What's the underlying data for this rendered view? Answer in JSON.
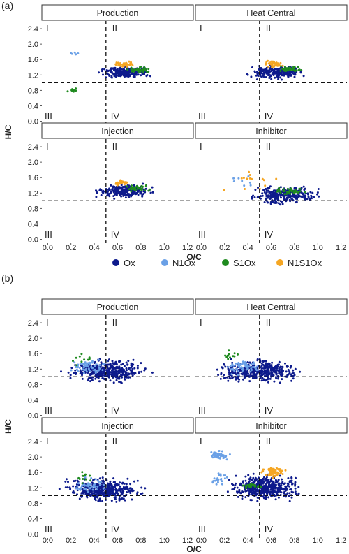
{
  "figure": {
    "panel_labels": [
      "(a)",
      "(b)"
    ],
    "facet_titles": [
      "Production",
      "Heat Central",
      "Injection",
      "Inhibitor"
    ],
    "quadrant_labels": [
      "I",
      "II",
      "III",
      "IV"
    ],
    "xlabel": "O/C",
    "ylabel": "H/C",
    "x_ticks": [
      "0.0",
      "0.2",
      "0.4",
      "0.6",
      "0.8",
      "1.0",
      "1.2"
    ],
    "y_ticks": [
      "0.0",
      "0.4",
      "0.8",
      "1.2",
      "1.6",
      "2.0",
      "2.4"
    ],
    "legend": [
      {
        "name": "Ox",
        "color": "#0d1a8c"
      },
      {
        "name": "N1Ox",
        "color": "#6aa0e6"
      },
      {
        "name": "S1Ox",
        "color": "#1f8a1f"
      },
      {
        "name": "N1S1Ox",
        "color": "#f5a623"
      }
    ]
  },
  "chart_data": [
    {
      "type": "scatter",
      "panel": "(a)",
      "xlim": [
        -0.05,
        1.25
      ],
      "ylim": [
        -0.1,
        2.6
      ],
      "reference_lines": {
        "x": 0.5,
        "y": 1.0
      },
      "facets": [
        {
          "title": "Production",
          "clusters": [
            {
              "series": "Ox",
              "center": [
                0.65,
                1.28
              ],
              "spread": [
                0.18,
                0.12
              ],
              "n": 240
            },
            {
              "series": "S1Ox",
              "center": [
                0.78,
                1.33
              ],
              "spread": [
                0.08,
                0.06
              ],
              "n": 45
            },
            {
              "series": "S1Ox",
              "center": [
                0.22,
                0.82
              ],
              "spread": [
                0.05,
                0.05
              ],
              "n": 8
            },
            {
              "series": "N1S1Ox",
              "center": [
                0.66,
                1.47
              ],
              "spread": [
                0.06,
                0.06
              ],
              "n": 35
            },
            {
              "series": "N1Ox",
              "center": [
                0.22,
                1.76
              ],
              "spread": [
                0.05,
                0.03
              ],
              "n": 6
            }
          ]
        },
        {
          "title": "Heat Central",
          "clusters": [
            {
              "series": "Ox",
              "center": [
                0.65,
                1.27
              ],
              "spread": [
                0.19,
                0.13
              ],
              "n": 240
            },
            {
              "series": "S1Ox",
              "center": [
                0.76,
                1.35
              ],
              "spread": [
                0.08,
                0.06
              ],
              "n": 45
            },
            {
              "series": "N1S1Ox",
              "center": [
                0.62,
                1.48
              ],
              "spread": [
                0.06,
                0.07
              ],
              "n": 45
            }
          ]
        },
        {
          "title": "Injection",
          "clusters": [
            {
              "series": "Ox",
              "center": [
                0.65,
                1.25
              ],
              "spread": [
                0.18,
                0.14
              ],
              "n": 240
            },
            {
              "series": "S1Ox",
              "center": [
                0.78,
                1.32
              ],
              "spread": [
                0.08,
                0.06
              ],
              "n": 40
            },
            {
              "series": "N1S1Ox",
              "center": [
                0.63,
                1.47
              ],
              "spread": [
                0.05,
                0.06
              ],
              "n": 30
            }
          ]
        },
        {
          "title": "Inhibitor",
          "clusters": [
            {
              "series": "Ox",
              "center": [
                0.72,
                1.15
              ],
              "spread": [
                0.22,
                0.18
              ],
              "n": 260
            },
            {
              "series": "S1Ox",
              "center": [
                0.75,
                1.25
              ],
              "spread": [
                0.12,
                0.08
              ],
              "n": 40
            },
            {
              "series": "N1S1Ox",
              "center": [
                0.45,
                1.55
              ],
              "spread": [
                0.2,
                0.2
              ],
              "n": 14
            },
            {
              "series": "N1Ox",
              "center": [
                0.35,
                1.5
              ],
              "spread": [
                0.15,
                0.15
              ],
              "n": 8
            }
          ]
        }
      ]
    },
    {
      "type": "scatter",
      "panel": "(b)",
      "xlim": [
        -0.05,
        1.25
      ],
      "ylim": [
        -0.1,
        2.6
      ],
      "reference_lines": {
        "x": 0.5,
        "y": 1.0
      },
      "facets": [
        {
          "title": "Production",
          "clusters": [
            {
              "series": "Ox",
              "center": [
                0.5,
                1.15
              ],
              "spread": [
                0.25,
                0.22
              ],
              "n": 420
            },
            {
              "series": "N1Ox",
              "center": [
                0.35,
                1.25
              ],
              "spread": [
                0.12,
                0.15
              ],
              "n": 60
            },
            {
              "series": "S1Ox",
              "center": [
                0.28,
                1.45
              ],
              "spread": [
                0.08,
                0.15
              ],
              "n": 10
            }
          ]
        },
        {
          "title": "Heat Central",
          "clusters": [
            {
              "series": "Ox",
              "center": [
                0.5,
                1.15
              ],
              "spread": [
                0.25,
                0.22
              ],
              "n": 420
            },
            {
              "series": "N1Ox",
              "center": [
                0.35,
                1.25
              ],
              "spread": [
                0.12,
                0.15
              ],
              "n": 60
            },
            {
              "series": "S1Ox",
              "center": [
                0.25,
                1.55
              ],
              "spread": [
                0.06,
                0.1
              ],
              "n": 12
            }
          ]
        },
        {
          "title": "Injection",
          "clusters": [
            {
              "series": "Ox",
              "center": [
                0.48,
                1.15
              ],
              "spread": [
                0.25,
                0.22
              ],
              "n": 420
            },
            {
              "series": "N1Ox",
              "center": [
                0.35,
                1.25
              ],
              "spread": [
                0.12,
                0.15
              ],
              "n": 50
            },
            {
              "series": "S1Ox",
              "center": [
                0.3,
                1.45
              ],
              "spread": [
                0.08,
                0.15
              ],
              "n": 12
            }
          ]
        },
        {
          "title": "Inhibitor",
          "clusters": [
            {
              "series": "Ox",
              "center": [
                0.55,
                1.2
              ],
              "spread": [
                0.22,
                0.25
              ],
              "n": 480
            },
            {
              "series": "N1S1Ox",
              "center": [
                0.62,
                1.6
              ],
              "spread": [
                0.08,
                0.12
              ],
              "n": 70
            },
            {
              "series": "S1Ox",
              "center": [
                0.42,
                1.25
              ],
              "spread": [
                0.07,
                0.05
              ],
              "n": 30
            },
            {
              "series": "N1Ox",
              "center": [
                0.15,
                2.05
              ],
              "spread": [
                0.06,
                0.1
              ],
              "n": 50
            },
            {
              "series": "N1Ox",
              "center": [
                0.15,
                1.45
              ],
              "spread": [
                0.05,
                0.15
              ],
              "n": 25
            }
          ]
        }
      ]
    }
  ]
}
